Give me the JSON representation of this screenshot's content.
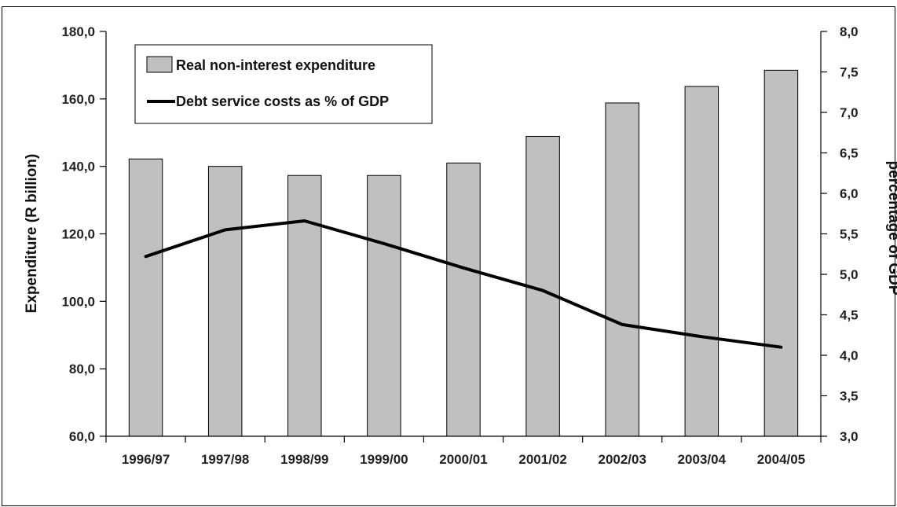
{
  "chart_data": {
    "type": "bar",
    "categories": [
      "1996/97",
      "1997/98",
      "1998/99",
      "1999/00",
      "2000/01",
      "2001/02",
      "2002/03",
      "2003/04",
      "2004/05"
    ],
    "series": [
      {
        "name": "Real non-interest expenditure",
        "type": "bar",
        "axis": "left",
        "values": [
          142.2,
          140.0,
          137.3,
          137.3,
          141.0,
          148.9,
          158.8,
          163.7,
          168.5
        ]
      },
      {
        "name": "Debt service costs as % of GDP",
        "type": "line",
        "axis": "right",
        "values": [
          5.22,
          5.55,
          5.66,
          5.38,
          5.08,
          4.8,
          4.38,
          4.23,
          4.1
        ]
      }
    ],
    "ylabel": "Expenditure (R billion)",
    "y2label": "percentage of GDP",
    "ylim": [
      60,
      180
    ],
    "y2lim": [
      3.0,
      8.0
    ],
    "yticks": [
      "60,0",
      "80,0",
      "100,0",
      "120,0",
      "140,0",
      "160,0",
      "180,0"
    ],
    "y2ticks": [
      "3,0",
      "3,5",
      "4,0",
      "4,5",
      "5,0",
      "5,5",
      "6,0",
      "6,5",
      "7,0",
      "7,5",
      "8,0"
    ],
    "legend_position": "top-left",
    "grid": false,
    "colors": {
      "bar_fill": "#c0c0c0",
      "bar_stroke": "#000000",
      "line": "#000000"
    }
  }
}
